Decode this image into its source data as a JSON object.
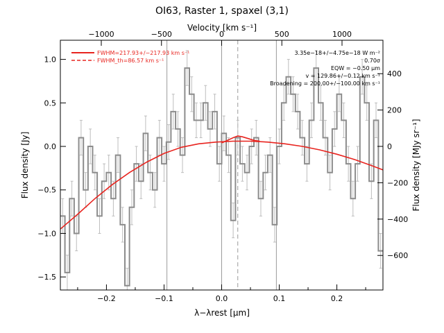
{
  "chart_data": {
    "type": "line",
    "title": "OI63, Raster 1, spaxel (3,1)",
    "xlabel": "λ−λrest [μm]",
    "ylabel": "Flux density [Jy]",
    "top_axis_label": "Velocity [km s⁻¹]",
    "right_axis_label": "Flux density [MJy sr⁻¹]",
    "xlim": [
      -0.28,
      0.28
    ],
    "ylim": [
      -1.65,
      1.22
    ],
    "top_xlim": [
      -1340,
      1340
    ],
    "right_ylim": [
      -790,
      584
    ],
    "x_ticks": [
      -0.2,
      -0.1,
      0.0,
      0.1,
      0.2
    ],
    "x_tick_labels": [
      "−0.2",
      "−0.1",
      "0.0",
      "0.1",
      "0.2"
    ],
    "y_ticks": [
      -1.5,
      -1.0,
      -0.5,
      0.0,
      0.5,
      1.0
    ],
    "y_tick_labels": [
      "−1.5",
      "−1.0",
      "−0.5",
      "0.0",
      "0.5",
      "1.0"
    ],
    "top_ticks": [
      -1000,
      -500,
      0,
      500,
      1000
    ],
    "top_tick_labels": [
      "−1000",
      "−500",
      "0",
      "500",
      "1000"
    ],
    "right_ticks": [
      -600,
      -400,
      -200,
      0,
      200,
      400
    ],
    "right_tick_labels": [
      "−600",
      "−400",
      "−200",
      "0",
      "200",
      "400"
    ],
    "vertical_lines": [
      -0.095,
      0.0,
      0.095
    ],
    "rest_line_dashed_x": 0.028,
    "legend": {
      "placement": "top-left",
      "entries": [
        {
          "label": "FWHM=217.93+/−217.93 km s⁻¹",
          "style": "solid"
        },
        {
          "label": "FWHM_th=86.57 km s⁻¹",
          "style": "dashed"
        }
      ]
    },
    "annotations": [
      "3.35e−18+/−4.75e−18 W m⁻²",
      "0.70σ",
      "EQW = −0.50 μm",
      "v = 129.86+/−0.12 km s⁻¹",
      "Broadening = 200.00+/−100.00 km s⁻¹"
    ],
    "spectrum": {
      "name": "",
      "color": "#8c8c8c",
      "x": [
        -0.276,
        -0.268,
        -0.26,
        -0.252,
        -0.244,
        -0.236,
        -0.228,
        -0.22,
        -0.212,
        -0.204,
        -0.196,
        -0.188,
        -0.18,
        -0.172,
        -0.164,
        -0.156,
        -0.148,
        -0.14,
        -0.132,
        -0.124,
        -0.116,
        -0.108,
        -0.1,
        -0.092,
        -0.084,
        -0.076,
        -0.068,
        -0.06,
        -0.052,
        -0.044,
        -0.036,
        -0.028,
        -0.02,
        -0.012,
        -0.004,
        0.004,
        0.012,
        0.02,
        0.028,
        0.036,
        0.044,
        0.052,
        0.06,
        0.068,
        0.076,
        0.084,
        0.092,
        0.1,
        0.108,
        0.116,
        0.124,
        0.132,
        0.14,
        0.148,
        0.156,
        0.164,
        0.172,
        0.18,
        0.188,
        0.196,
        0.204,
        0.212,
        0.22,
        0.228,
        0.236,
        0.244,
        0.252,
        0.26,
        0.268,
        0.276
      ],
      "y": [
        -0.8,
        -1.45,
        -0.6,
        -1.0,
        0.1,
        -0.5,
        0.0,
        -0.3,
        -0.8,
        -0.4,
        -0.3,
        -0.6,
        -0.1,
        -0.9,
        -1.6,
        -0.7,
        -0.2,
        -0.4,
        0.15,
        -0.3,
        -0.5,
        0.1,
        -0.2,
        0.05,
        0.4,
        0.2,
        -0.1,
        0.9,
        0.6,
        0.3,
        0.3,
        0.5,
        0.2,
        0.4,
        -0.2,
        0.15,
        -0.1,
        -0.85,
        0.1,
        -0.2,
        -0.3,
        0.0,
        0.1,
        -0.6,
        -0.3,
        -0.1,
        -0.9,
        0.0,
        0.5,
        0.8,
        0.6,
        0.4,
        0.1,
        -0.2,
        0.3,
        0.9,
        0.5,
        0.1,
        -0.3,
        0.2,
        0.6,
        0.3,
        -0.2,
        -0.6,
        -0.2,
        0.8,
        0.5,
        -0.4,
        0.3,
        -1.2
      ],
      "err": 0.2
    },
    "fit": {
      "name": "",
      "color": "#e8231e",
      "x": [
        -0.28,
        -0.25,
        -0.22,
        -0.19,
        -0.16,
        -0.13,
        -0.1,
        -0.07,
        -0.04,
        -0.01,
        0.02,
        0.05,
        0.08,
        0.11,
        0.14,
        0.17,
        0.2,
        0.23,
        0.26,
        0.28
      ],
      "y": [
        -0.95,
        -0.78,
        -0.6,
        -0.44,
        -0.3,
        -0.18,
        -0.08,
        -0.01,
        0.03,
        0.05,
        0.06,
        0.06,
        0.05,
        0.03,
        0.0,
        -0.04,
        -0.09,
        -0.15,
        -0.22,
        -0.27
      ]
    },
    "line_bump": {
      "name": "",
      "color": "#e8231e",
      "x": [
        0.0,
        0.01,
        0.02,
        0.028,
        0.036,
        0.046,
        0.056,
        0.066
      ],
      "y": [
        0.04,
        0.07,
        0.1,
        0.12,
        0.11,
        0.09,
        0.07,
        0.06
      ]
    }
  }
}
